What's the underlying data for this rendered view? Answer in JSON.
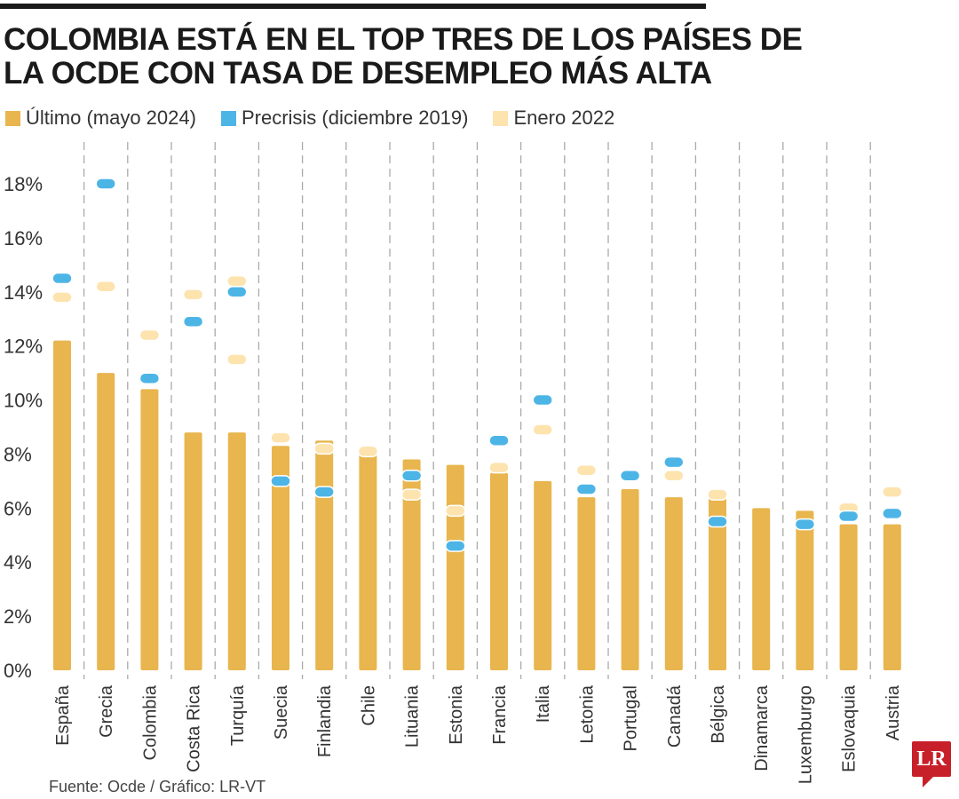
{
  "title": "COLOMBIA ESTÁ EN EL TOP TRES DE LOS PAÍSES DE LA OCDE CON TASA DE DESEMPLEO MÁS ALTA",
  "source": "Fuente: Ocde / Gráfico: LR-VT",
  "logo": "LR",
  "chart_data": {
    "type": "bar",
    "title": "COLOMBIA ESTÁ EN EL TOP TRES DE LOS PAÍSES DE LA OCDE CON TASA DE DESEMPLEO MÁS ALTA",
    "ylim": [
      0,
      18
    ],
    "yticks": [
      "0%",
      "2%",
      "4%",
      "6%",
      "8%",
      "10%",
      "12%",
      "14%",
      "16%",
      "18%"
    ],
    "grid": "vertical dashed separators",
    "legend_placement": "top-left",
    "categories": [
      "España",
      "Grecia",
      "Colombia",
      "Costa Rica",
      "Turquía",
      "Suecia",
      "Finlandia",
      "Chile",
      "Lituania",
      "Estonia",
      "Francia",
      "Italia",
      "Letonia",
      "Portugal",
      "Canadá",
      "Bélgica",
      "Dinamarca",
      "Luxemburgo",
      "Eslovaquia",
      "Austria"
    ],
    "series": [
      {
        "name": "Último (mayo 2024)",
        "mark": "bar",
        "color": "#e8b54e",
        "values": [
          12.2,
          11.0,
          10.4,
          8.8,
          8.8,
          8.3,
          8.5,
          8.1,
          7.8,
          7.6,
          7.3,
          7.0,
          6.4,
          6.7,
          6.4,
          6.5,
          6.0,
          5.9,
          5.4,
          5.4
        ]
      },
      {
        "name": "Precrisis (diciembre 2019)",
        "mark": "dot",
        "color": "#4db5e6",
        "values": [
          14.5,
          18.0,
          10.8,
          12.9,
          14.0,
          7.0,
          6.6,
          null,
          7.2,
          4.6,
          8.5,
          10.0,
          6.7,
          7.2,
          7.7,
          5.5,
          null,
          5.4,
          5.7,
          5.8
        ]
      },
      {
        "name": "Enero 2022",
        "mark": "dot",
        "color": "#fde3ae",
        "values": [
          13.8,
          14.2,
          12.4,
          13.9,
          [
            14.4,
            11.5
          ],
          8.6,
          8.2,
          8.1,
          6.5,
          5.9,
          7.5,
          8.9,
          7.4,
          null,
          7.2,
          6.5,
          null,
          null,
          6.0,
          6.6
        ]
      }
    ]
  }
}
